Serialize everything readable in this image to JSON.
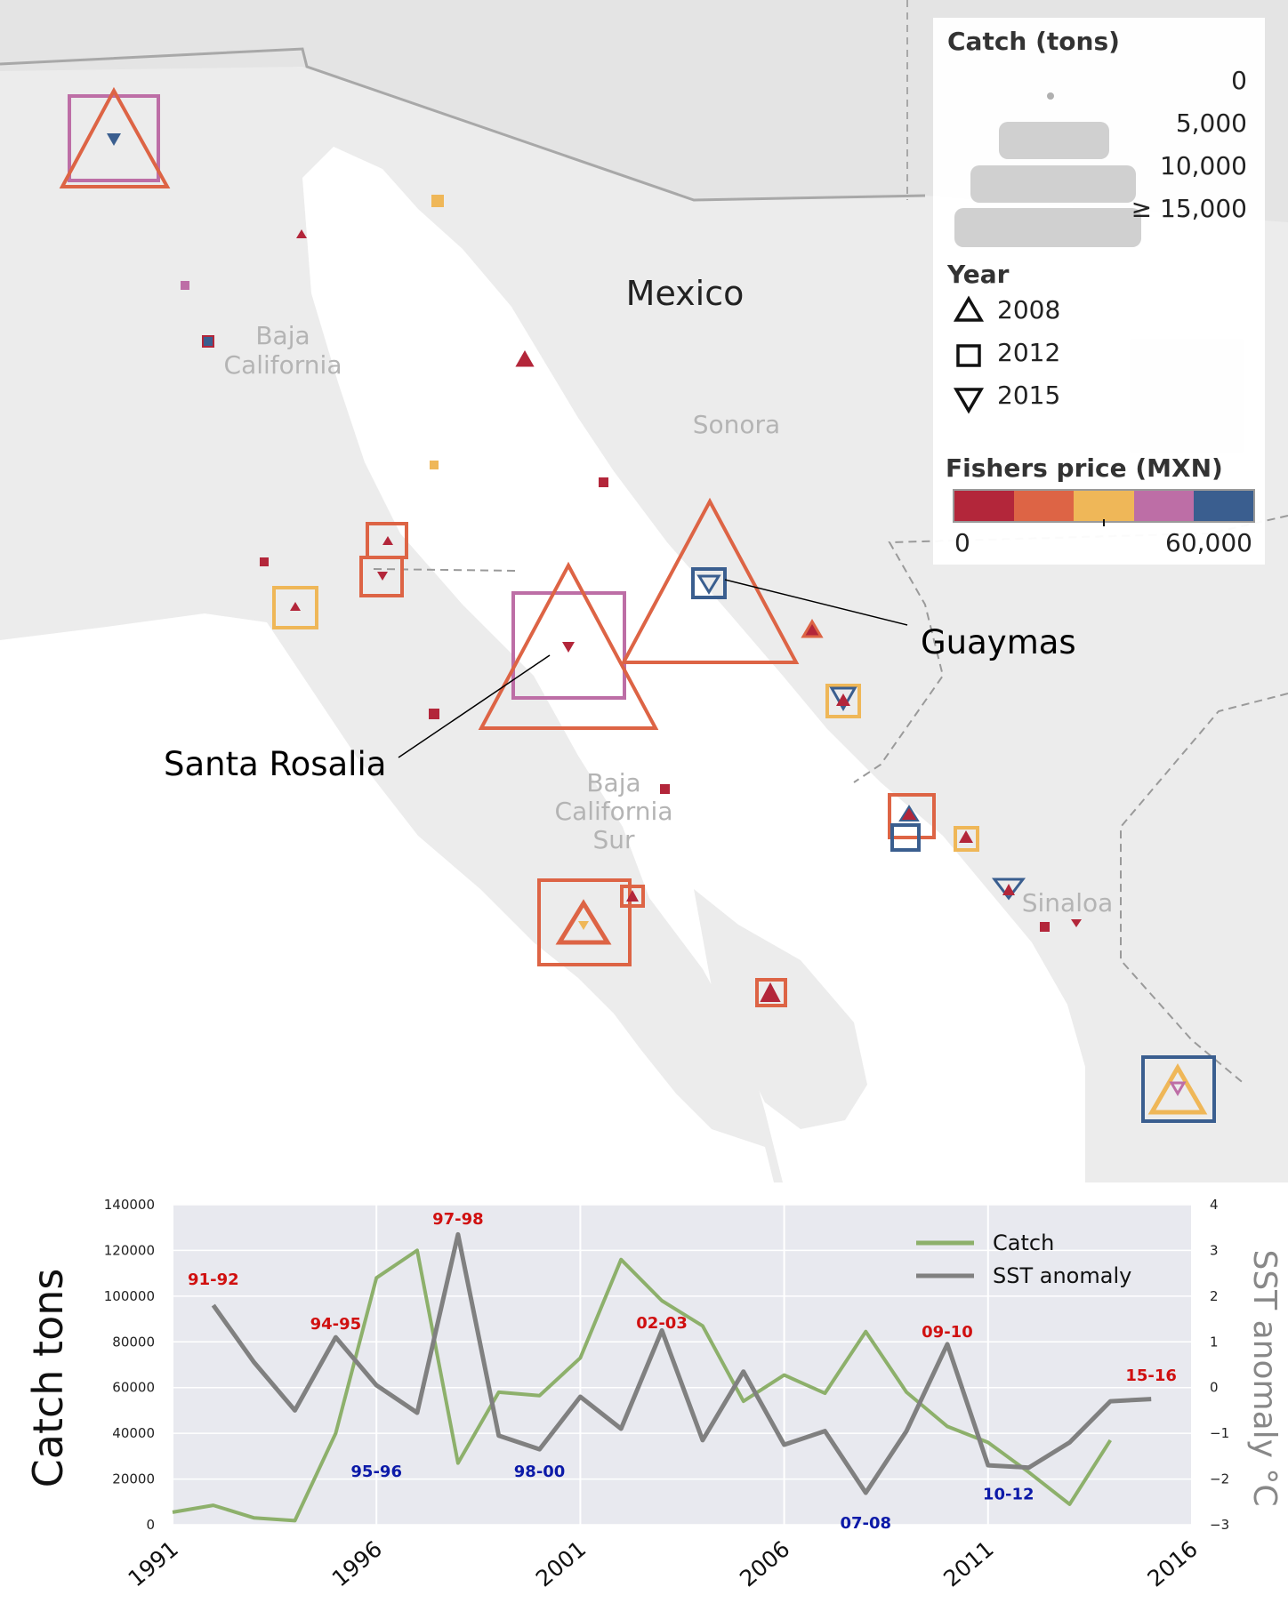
{
  "map": {
    "country_label": "Mexico",
    "region_labels": [
      "Baja California",
      "Sonora",
      "Baja California Sur",
      "Sinaloa"
    ],
    "callouts": [
      {
        "name": "Guaymas"
      },
      {
        "name": "Santa Rosalia"
      }
    ],
    "legend": {
      "catch_title": "Catch (tons)",
      "catch_levels": [
        "0",
        "5,000",
        "10,000",
        "≥ 15,000"
      ],
      "year_title": "Year",
      "years": [
        {
          "year": "2008",
          "shape": "triangle-up-icon"
        },
        {
          "year": "2012",
          "shape": "square-icon"
        },
        {
          "year": "2015",
          "shape": "triangle-down-icon"
        }
      ],
      "price_title": "Fishers price (MXN)",
      "price_min": "0",
      "price_max": "60,000",
      "price_colors": [
        "#b3263a",
        "#dd6445",
        "#efb758",
        "#bd6ea6",
        "#3a5e8f"
      ]
    },
    "colors": {
      "land": "#ececec",
      "sea": "#ffffff",
      "border": "#a8a8a8"
    }
  },
  "chart_data": {
    "type": "line",
    "x": [
      1991,
      1992,
      1993,
      1994,
      1995,
      1996,
      1997,
      1998,
      1999,
      2000,
      2001,
      2002,
      2003,
      2004,
      2005,
      2006,
      2007,
      2008,
      2009,
      2010,
      2011,
      2012,
      2013,
      2014,
      2015
    ],
    "series": [
      {
        "name": "Catch",
        "axis": "left",
        "color": "#8db06b",
        "values": [
          5500,
          8500,
          3000,
          1800,
          40000,
          108000,
          120000,
          27000,
          58000,
          56500,
          73000,
          116000,
          98000,
          87000,
          54000,
          65500,
          57500,
          84500,
          58000,
          43000,
          36000,
          23000,
          9000,
          37000,
          null
        ]
      },
      {
        "name": "SST anomaly",
        "axis": "right",
        "color": "#808080",
        "values": [
          null,
          1.8,
          0.55,
          -0.5,
          1.1,
          0.05,
          -0.55,
          3.35,
          -1.05,
          -1.35,
          -0.2,
          -0.9,
          1.25,
          -1.15,
          0.35,
          -1.25,
          -0.95,
          -2.3,
          -0.95,
          0.95,
          -1.7,
          -1.75,
          -1.2,
          -0.3,
          -0.25
        ]
      }
    ],
    "ylabel": "Catch tons",
    "ylabel_right": "SST anomaly °C",
    "ylim": [
      0,
      140000
    ],
    "ylim_right": [
      -3,
      4
    ],
    "xlim": [
      1991,
      2016
    ],
    "yticks": [
      "0",
      "20000",
      "40000",
      "60000",
      "80000",
      "100000",
      "120000",
      "140000"
    ],
    "yticks_right": [
      "4",
      "3",
      "2",
      "1",
      "0",
      "−1",
      "−2",
      "−3"
    ],
    "xticks": [
      "1991",
      "1996",
      "2001",
      "2006",
      "2011",
      "2016"
    ],
    "legend": {
      "position": "top-right",
      "entries": [
        "Catch",
        "SST anomaly"
      ]
    },
    "grid": true,
    "annotations": [
      {
        "text": "91-92",
        "year": 1992,
        "value": 105000,
        "color": "#d01010"
      },
      {
        "text": "94-95",
        "year": 1995,
        "value": 85500,
        "color": "#d01010"
      },
      {
        "text": "97-98",
        "year": 1998,
        "value": 131500,
        "color": "#d01010"
      },
      {
        "text": "02-03",
        "year": 2003,
        "value": 86000,
        "color": "#d01010"
      },
      {
        "text": "09-10",
        "year": 2010,
        "value": 82000,
        "color": "#d01010"
      },
      {
        "text": "15-16",
        "year": 2015,
        "value": 63000,
        "color": "#d01010"
      },
      {
        "text": "95-96",
        "year": 1996,
        "value": 21000,
        "color": "#0c1aa8"
      },
      {
        "text": "98-00",
        "year": 2000,
        "value": 21000,
        "color": "#0c1aa8"
      },
      {
        "text": "07-08",
        "year": 2008,
        "value": -1500,
        "color": "#0c1aa8"
      },
      {
        "text": "10-12",
        "year": 2011.5,
        "value": 11000,
        "color": "#0c1aa8"
      }
    ]
  }
}
